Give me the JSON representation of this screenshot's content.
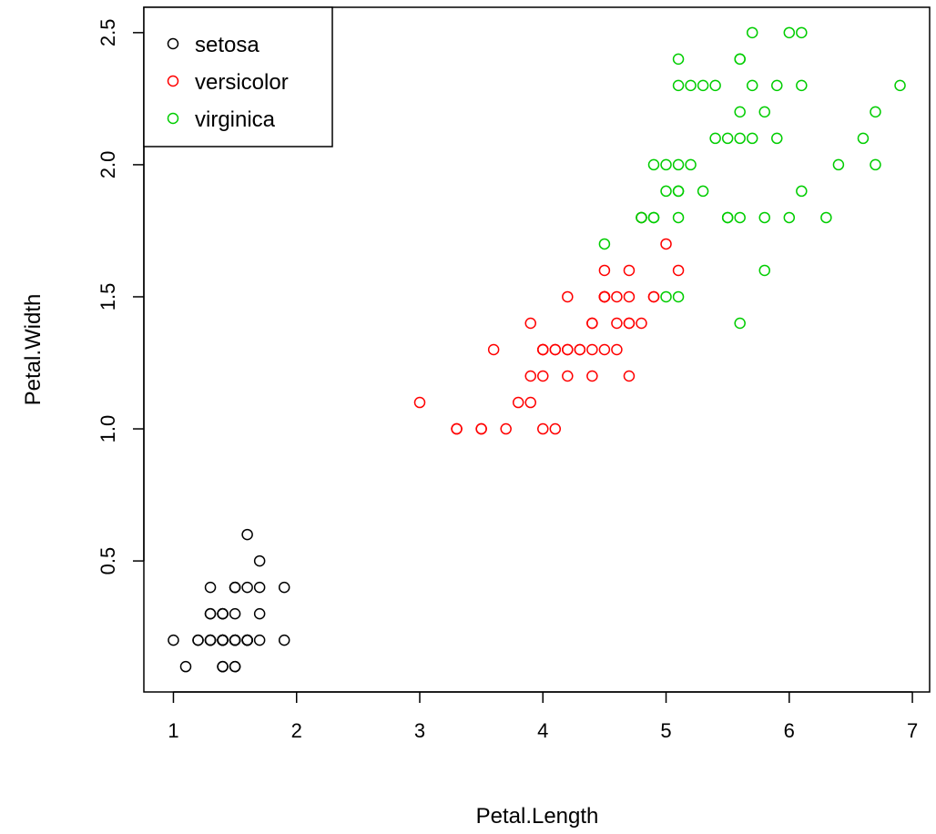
{
  "chart_data": {
    "type": "scatter",
    "xlabel": "Petal.Length",
    "ylabel": "Petal.Width",
    "xlim": [
      0.76,
      7.14
    ],
    "ylim": [
      0.004,
      2.596
    ],
    "x_ticks": [
      1,
      2,
      3,
      4,
      5,
      6,
      7
    ],
    "x_tick_labels": [
      "1",
      "2",
      "3",
      "4",
      "5",
      "6",
      "7"
    ],
    "y_ticks": [
      0.5,
      1.0,
      1.5,
      2.0,
      2.5
    ],
    "y_tick_labels": [
      "0.5",
      "1.0",
      "1.5",
      "2.0",
      "2.5"
    ],
    "grid": false,
    "legend_position": "top-left",
    "marker": "open-circle",
    "series": [
      {
        "name": "setosa",
        "color": "#000000",
        "points": [
          [
            1.4,
            0.2
          ],
          [
            1.4,
            0.2
          ],
          [
            1.3,
            0.2
          ],
          [
            1.5,
            0.2
          ],
          [
            1.4,
            0.2
          ],
          [
            1.7,
            0.4
          ],
          [
            1.4,
            0.3
          ],
          [
            1.5,
            0.2
          ],
          [
            1.4,
            0.2
          ],
          [
            1.5,
            0.1
          ],
          [
            1.5,
            0.2
          ],
          [
            1.6,
            0.2
          ],
          [
            1.4,
            0.1
          ],
          [
            1.1,
            0.1
          ],
          [
            1.2,
            0.2
          ],
          [
            1.5,
            0.4
          ],
          [
            1.3,
            0.4
          ],
          [
            1.4,
            0.3
          ],
          [
            1.7,
            0.3
          ],
          [
            1.5,
            0.3
          ],
          [
            1.7,
            0.2
          ],
          [
            1.5,
            0.4
          ],
          [
            1.0,
            0.2
          ],
          [
            1.7,
            0.5
          ],
          [
            1.9,
            0.2
          ],
          [
            1.6,
            0.2
          ],
          [
            1.6,
            0.4
          ],
          [
            1.5,
            0.2
          ],
          [
            1.4,
            0.2
          ],
          [
            1.6,
            0.2
          ],
          [
            1.6,
            0.2
          ],
          [
            1.5,
            0.4
          ],
          [
            1.5,
            0.1
          ],
          [
            1.4,
            0.2
          ],
          [
            1.5,
            0.2
          ],
          [
            1.2,
            0.2
          ],
          [
            1.3,
            0.2
          ],
          [
            1.4,
            0.1
          ],
          [
            1.3,
            0.2
          ],
          [
            1.5,
            0.2
          ],
          [
            1.3,
            0.3
          ],
          [
            1.3,
            0.3
          ],
          [
            1.3,
            0.2
          ],
          [
            1.6,
            0.6
          ],
          [
            1.9,
            0.4
          ],
          [
            1.4,
            0.3
          ],
          [
            1.6,
            0.2
          ],
          [
            1.4,
            0.2
          ],
          [
            1.5,
            0.2
          ],
          [
            1.4,
            0.2
          ]
        ]
      },
      {
        "name": "versicolor",
        "color": "#ff0000",
        "points": [
          [
            4.7,
            1.4
          ],
          [
            4.5,
            1.5
          ],
          [
            4.9,
            1.5
          ],
          [
            4.0,
            1.3
          ],
          [
            4.6,
            1.5
          ],
          [
            4.5,
            1.3
          ],
          [
            4.7,
            1.6
          ],
          [
            3.3,
            1.0
          ],
          [
            4.6,
            1.3
          ],
          [
            3.9,
            1.4
          ],
          [
            3.5,
            1.0
          ],
          [
            4.2,
            1.5
          ],
          [
            4.0,
            1.0
          ],
          [
            4.7,
            1.4
          ],
          [
            3.6,
            1.3
          ],
          [
            4.4,
            1.4
          ],
          [
            4.5,
            1.5
          ],
          [
            4.1,
            1.0
          ],
          [
            4.5,
            1.5
          ],
          [
            3.9,
            1.1
          ],
          [
            4.8,
            1.8
          ],
          [
            4.0,
            1.3
          ],
          [
            4.9,
            1.5
          ],
          [
            4.7,
            1.2
          ],
          [
            4.3,
            1.3
          ],
          [
            4.4,
            1.4
          ],
          [
            4.8,
            1.4
          ],
          [
            5.0,
            1.7
          ],
          [
            4.5,
            1.5
          ],
          [
            3.5,
            1.0
          ],
          [
            3.8,
            1.1
          ],
          [
            3.7,
            1.0
          ],
          [
            3.9,
            1.2
          ],
          [
            5.1,
            1.6
          ],
          [
            4.5,
            1.5
          ],
          [
            4.5,
            1.6
          ],
          [
            4.7,
            1.5
          ],
          [
            4.4,
            1.3
          ],
          [
            4.1,
            1.3
          ],
          [
            4.0,
            1.3
          ],
          [
            4.4,
            1.2
          ],
          [
            4.6,
            1.4
          ],
          [
            4.0,
            1.2
          ],
          [
            3.3,
            1.0
          ],
          [
            4.2,
            1.3
          ],
          [
            4.2,
            1.2
          ],
          [
            4.2,
            1.3
          ],
          [
            4.3,
            1.3
          ],
          [
            3.0,
            1.1
          ],
          [
            4.1,
            1.3
          ]
        ]
      },
      {
        "name": "virginica",
        "color": "#00cd00",
        "points": [
          [
            6.0,
            2.5
          ],
          [
            5.1,
            1.9
          ],
          [
            5.9,
            2.1
          ],
          [
            5.6,
            1.8
          ],
          [
            5.8,
            2.2
          ],
          [
            6.6,
            2.1
          ],
          [
            4.5,
            1.7
          ],
          [
            6.3,
            1.8
          ],
          [
            5.8,
            1.8
          ],
          [
            6.1,
            2.5
          ],
          [
            5.1,
            2.0
          ],
          [
            5.3,
            1.9
          ],
          [
            5.5,
            2.1
          ],
          [
            5.0,
            2.0
          ],
          [
            5.1,
            2.4
          ],
          [
            5.3,
            2.3
          ],
          [
            5.5,
            1.8
          ],
          [
            6.7,
            2.2
          ],
          [
            6.9,
            2.3
          ],
          [
            5.0,
            1.5
          ],
          [
            5.7,
            2.3
          ],
          [
            4.9,
            2.0
          ],
          [
            6.7,
            2.0
          ],
          [
            4.9,
            1.8
          ],
          [
            5.7,
            2.1
          ],
          [
            6.0,
            1.8
          ],
          [
            4.8,
            1.8
          ],
          [
            4.9,
            1.8
          ],
          [
            5.6,
            2.1
          ],
          [
            5.8,
            1.6
          ],
          [
            6.1,
            1.9
          ],
          [
            6.4,
            2.0
          ],
          [
            5.6,
            2.2
          ],
          [
            5.1,
            1.5
          ],
          [
            5.6,
            1.4
          ],
          [
            6.1,
            2.3
          ],
          [
            5.6,
            2.4
          ],
          [
            5.5,
            1.8
          ],
          [
            4.8,
            1.8
          ],
          [
            5.4,
            2.1
          ],
          [
            5.6,
            2.4
          ],
          [
            5.1,
            2.3
          ],
          [
            5.1,
            1.9
          ],
          [
            5.9,
            2.3
          ],
          [
            5.7,
            2.5
          ],
          [
            5.2,
            2.3
          ],
          [
            5.0,
            1.9
          ],
          [
            5.2,
            2.0
          ],
          [
            5.4,
            2.3
          ],
          [
            5.1,
            1.8
          ]
        ]
      }
    ]
  }
}
